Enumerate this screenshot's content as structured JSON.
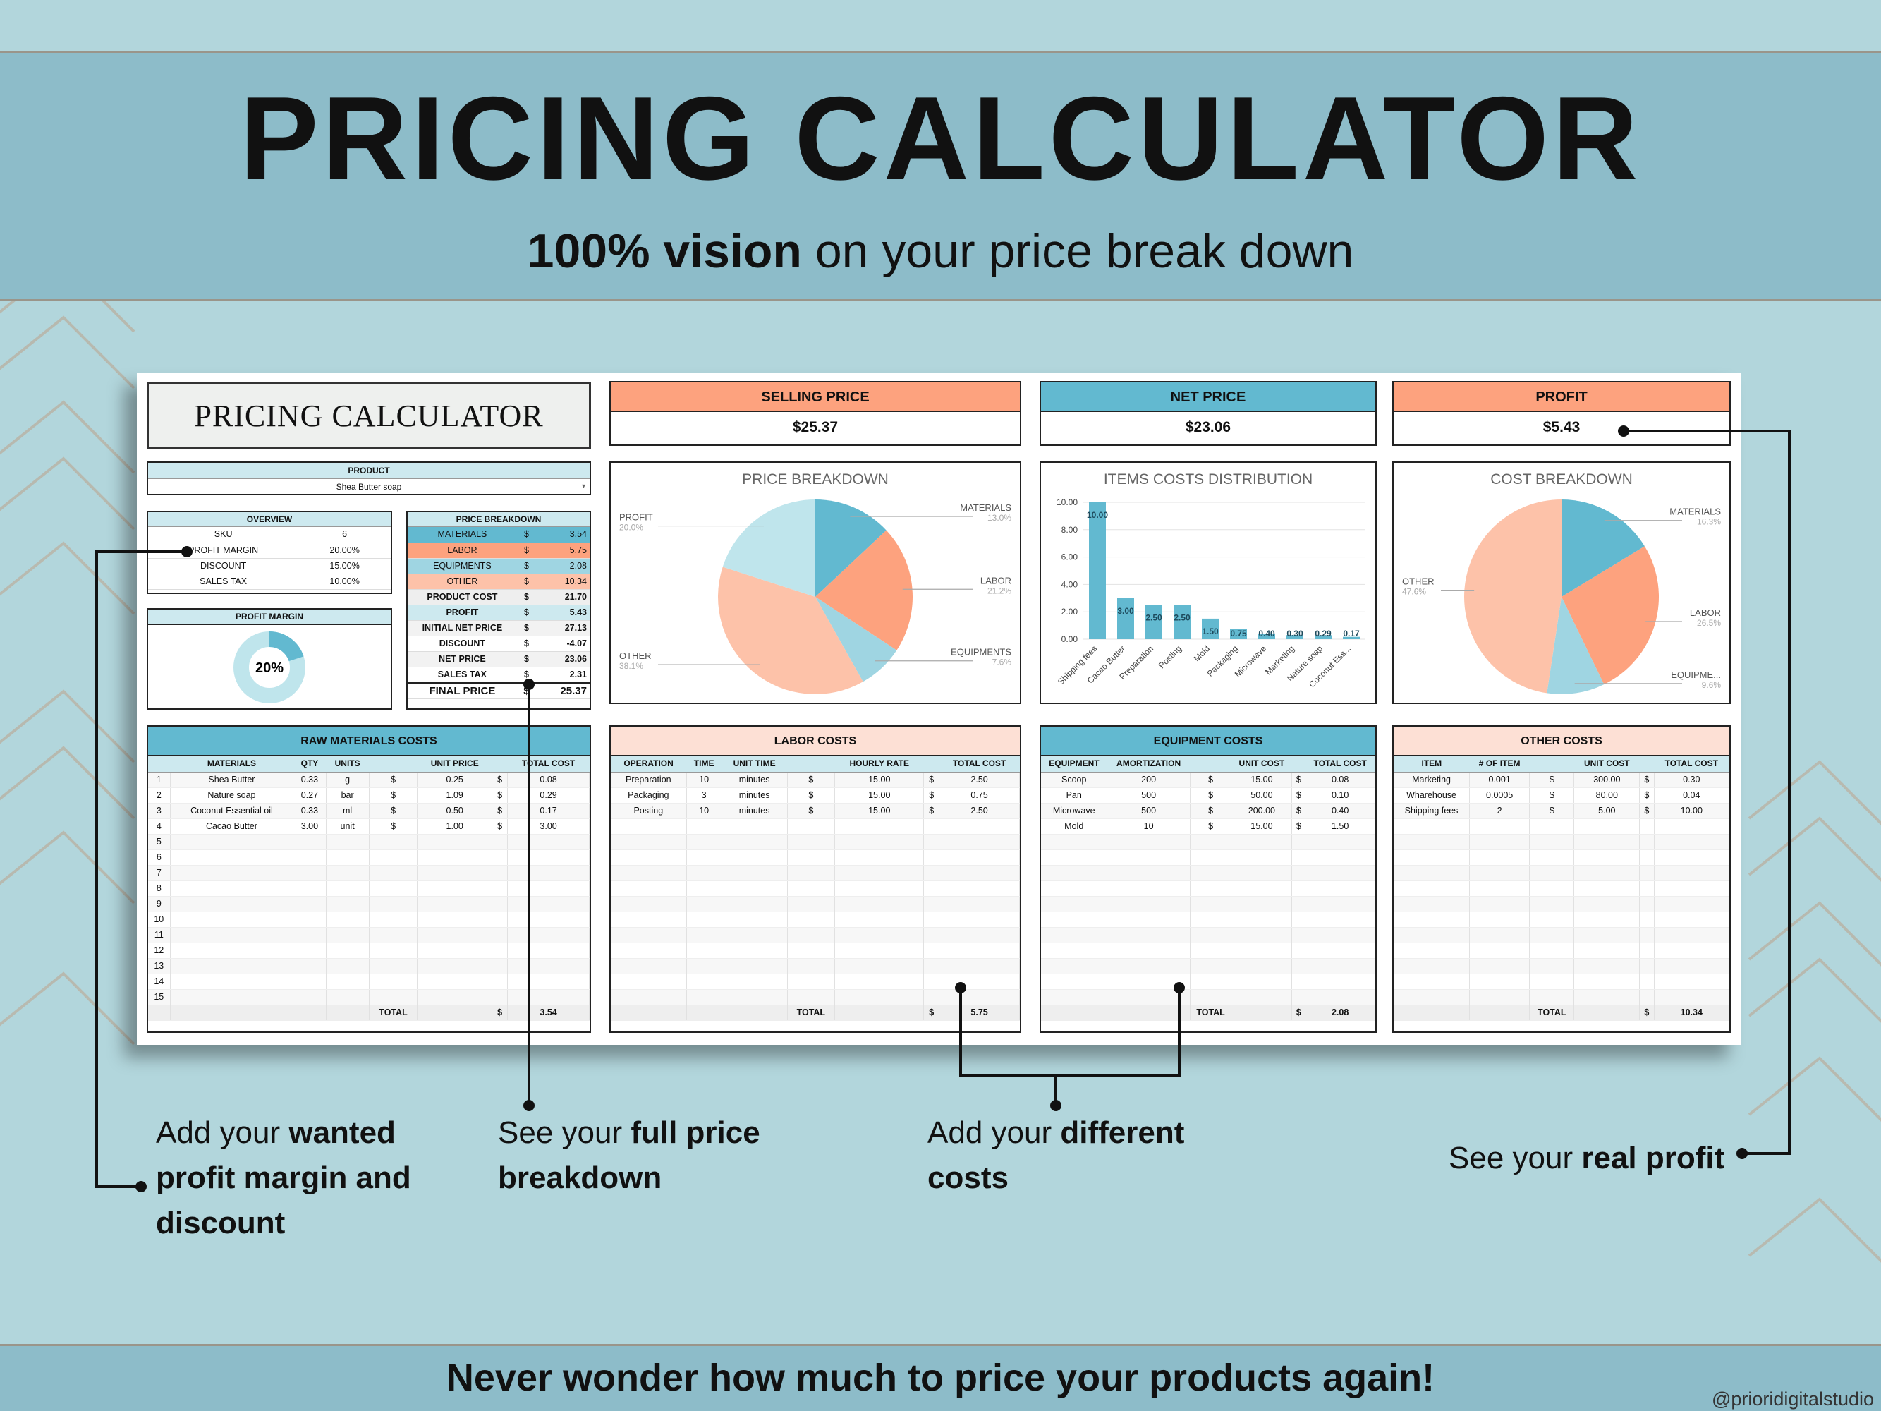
{
  "header": {
    "title": "PRICING CALCULATOR",
    "subtitle_bold": "100% vision",
    "subtitle_rest": " on your price break down"
  },
  "footer": {
    "tagline": "Never wonder how much to price your products again!",
    "credit": "@prioridigitalstudio"
  },
  "sheet": {
    "title": "PRICING CALCULATOR",
    "kpis": [
      {
        "label": "SELLING PRICE",
        "value": "$25.37",
        "color": "#fda27e"
      },
      {
        "label": "NET PRICE",
        "value": "$23.06",
        "color": "#62b9d0"
      },
      {
        "label": "PROFIT",
        "value": "$5.43",
        "color": "#fda27e"
      }
    ],
    "product": {
      "label": "PRODUCT",
      "value": "Shea Butter soap"
    },
    "overview": {
      "label": "OVERVIEW",
      "rows": [
        {
          "k": "SKU",
          "v": "6"
        },
        {
          "k": "PROFIT MARGIN",
          "v": "20.00%"
        },
        {
          "k": "DISCOUNT",
          "v": "15.00%"
        },
        {
          "k": "SALES TAX",
          "v": "10.00%"
        }
      ]
    },
    "profit_margin": {
      "label": "PROFIT MARGIN",
      "value": "20%",
      "fraction": 0.2
    },
    "price_breakdown": {
      "label": "PRICE BREAKDOWN",
      "rows": [
        {
          "k": "MATERIALS",
          "c": "$",
          "v": "3.54"
        },
        {
          "k": "LABOR",
          "c": "$",
          "v": "5.75"
        },
        {
          "k": "EQUIPMENTS",
          "c": "$",
          "v": "2.08"
        },
        {
          "k": "OTHER",
          "c": "$",
          "v": "10.34"
        },
        {
          "k": "PRODUCT COST",
          "c": "$",
          "v": "21.70"
        },
        {
          "k": "PROFIT",
          "c": "$",
          "v": "5.43"
        },
        {
          "k": "INITIAL NET PRICE",
          "c": "$",
          "v": "27.13"
        },
        {
          "k": "DISCOUNT",
          "c": "$",
          "v": "-4.07"
        },
        {
          "k": "NET PRICE",
          "c": "$",
          "v": "23.06"
        },
        {
          "k": "SALES TAX",
          "c": "$",
          "v": "2.31"
        },
        {
          "k": "FINAL PRICE",
          "c": "$",
          "v": "25.37"
        }
      ]
    },
    "raw": {
      "title": "RAW MATERIALS COSTS",
      "cols": [
        "",
        "MATERIALS",
        "QTY",
        "UNITS",
        "",
        "UNIT PRICE",
        "",
        "TOTAL COST"
      ],
      "rows": [
        [
          "1",
          "Shea Butter",
          "0.33",
          "g",
          "$",
          "0.25",
          "$",
          "0.08"
        ],
        [
          "2",
          "Nature soap",
          "0.27",
          "bar",
          "$",
          "1.09",
          "$",
          "0.29"
        ],
        [
          "3",
          "Coconut Essential oil",
          "0.33",
          "ml",
          "$",
          "0.50",
          "$",
          "0.17"
        ],
        [
          "4",
          "Cacao Butter",
          "3.00",
          "unit",
          "$",
          "1.00",
          "$",
          "3.00"
        ],
        [
          "5",
          "",
          "",
          "",
          "",
          "",
          "",
          ""
        ],
        [
          "6",
          "",
          "",
          "",
          "",
          "",
          "",
          ""
        ],
        [
          "7",
          "",
          "",
          "",
          "",
          "",
          "",
          ""
        ],
        [
          "8",
          "",
          "",
          "",
          "",
          "",
          "",
          ""
        ],
        [
          "9",
          "",
          "",
          "",
          "",
          "",
          "",
          ""
        ],
        [
          "10",
          "",
          "",
          "",
          "",
          "",
          "",
          ""
        ],
        [
          "11",
          "",
          "",
          "",
          "",
          "",
          "",
          ""
        ],
        [
          "12",
          "",
          "",
          "",
          "",
          "",
          "",
          ""
        ],
        [
          "13",
          "",
          "",
          "",
          "",
          "",
          "",
          ""
        ],
        [
          "14",
          "",
          "",
          "",
          "",
          "",
          "",
          ""
        ],
        [
          "15",
          "",
          "",
          "",
          "",
          "",
          "",
          ""
        ]
      ],
      "total": [
        "",
        "",
        "",
        "",
        "TOTAL",
        "",
        "$",
        "3.54"
      ]
    },
    "labor": {
      "title": "LABOR COSTS",
      "cols": [
        "OPERATION",
        "TIME",
        "UNIT TIME",
        "",
        "HOURLY RATE",
        "",
        "TOTAL COST"
      ],
      "rows": [
        [
          "Preparation",
          "10",
          "minutes",
          "$",
          "15.00",
          "$",
          "2.50"
        ],
        [
          "Packaging",
          "3",
          "minutes",
          "$",
          "15.00",
          "$",
          "0.75"
        ],
        [
          "Posting",
          "10",
          "minutes",
          "$",
          "15.00",
          "$",
          "2.50"
        ],
        [
          "",
          "",
          "",
          "",
          "",
          "",
          ""
        ],
        [
          "",
          "",
          "",
          "",
          "",
          "",
          ""
        ],
        [
          "",
          "",
          "",
          "",
          "",
          "",
          ""
        ],
        [
          "",
          "",
          "",
          "",
          "",
          "",
          ""
        ],
        [
          "",
          "",
          "",
          "",
          "",
          "",
          ""
        ],
        [
          "",
          "",
          "",
          "",
          "",
          "",
          ""
        ],
        [
          "",
          "",
          "",
          "",
          "",
          "",
          ""
        ],
        [
          "",
          "",
          "",
          "",
          "",
          "",
          ""
        ],
        [
          "",
          "",
          "",
          "",
          "",
          "",
          ""
        ],
        [
          "",
          "",
          "",
          "",
          "",
          "",
          ""
        ],
        [
          "",
          "",
          "",
          "",
          "",
          "",
          ""
        ],
        [
          "",
          "",
          "",
          "",
          "",
          "",
          ""
        ]
      ],
      "total": [
        "",
        "",
        "",
        "TOTAL",
        "",
        "$",
        "5.75"
      ]
    },
    "equipment": {
      "title": "EQUIPMENT COSTS",
      "cols": [
        "EQUIPMENT",
        "AMORTIZATION",
        "",
        "UNIT COST",
        "",
        "TOTAL COST"
      ],
      "rows": [
        [
          "Scoop",
          "200",
          "$",
          "15.00",
          "$",
          "0.08"
        ],
        [
          "Pan",
          "500",
          "$",
          "50.00",
          "$",
          "0.10"
        ],
        [
          "Microwave",
          "500",
          "$",
          "200.00",
          "$",
          "0.40"
        ],
        [
          "Mold",
          "10",
          "$",
          "15.00",
          "$",
          "1.50"
        ],
        [
          "",
          "",
          "",
          "",
          "",
          ""
        ],
        [
          "",
          "",
          "",
          "",
          "",
          ""
        ],
        [
          "",
          "",
          "",
          "",
          "",
          ""
        ],
        [
          "",
          "",
          "",
          "",
          "",
          ""
        ],
        [
          "",
          "",
          "",
          "",
          "",
          ""
        ],
        [
          "",
          "",
          "",
          "",
          "",
          ""
        ],
        [
          "",
          "",
          "",
          "",
          "",
          ""
        ],
        [
          "",
          "",
          "",
          "",
          "",
          ""
        ],
        [
          "",
          "",
          "",
          "",
          "",
          ""
        ],
        [
          "",
          "",
          "",
          "",
          "",
          ""
        ],
        [
          "",
          "",
          "",
          "",
          "",
          ""
        ]
      ],
      "total": [
        "",
        "",
        "TOTAL",
        "",
        "$",
        "2.08"
      ]
    },
    "other": {
      "title": "OTHER COSTS",
      "cols": [
        "ITEM",
        "# OF ITEM",
        "",
        "UNIT COST",
        "",
        "TOTAL COST"
      ],
      "rows": [
        [
          "Marketing",
          "0.001",
          "$",
          "300.00",
          "$",
          "0.30"
        ],
        [
          "Wharehouse",
          "0.0005",
          "$",
          "80.00",
          "$",
          "0.04"
        ],
        [
          "Shipping fees",
          "2",
          "$",
          "5.00",
          "$",
          "10.00"
        ],
        [
          "",
          "",
          "",
          "",
          "",
          ""
        ],
        [
          "",
          "",
          "",
          "",
          "",
          ""
        ],
        [
          "",
          "",
          "",
          "",
          "",
          ""
        ],
        [
          "",
          "",
          "",
          "",
          "",
          ""
        ],
        [
          "",
          "",
          "",
          "",
          "",
          ""
        ],
        [
          "",
          "",
          "",
          "",
          "",
          ""
        ],
        [
          "",
          "",
          "",
          "",
          "",
          ""
        ],
        [
          "",
          "",
          "",
          "",
          "",
          ""
        ],
        [
          "",
          "",
          "",
          "",
          "",
          ""
        ],
        [
          "",
          "",
          "",
          "",
          "",
          ""
        ],
        [
          "",
          "",
          "",
          "",
          "",
          ""
        ],
        [
          "",
          "",
          "",
          "",
          "",
          ""
        ]
      ],
      "total": [
        "",
        "",
        "TOTAL",
        "",
        "$",
        "10.34"
      ]
    }
  },
  "chart_data": [
    {
      "type": "pie",
      "title": "PRICE BREAKDOWN",
      "slices": [
        {
          "label": "MATERIALS",
          "pct": "13.0%",
          "value": 13.0,
          "color": "#62b9d0"
        },
        {
          "label": "LABOR",
          "pct": "21.2%",
          "value": 21.2,
          "color": "#fda27e"
        },
        {
          "label": "EQUIPMENTS",
          "pct": "7.6%",
          "value": 7.6,
          "color": "#9fd5e2"
        },
        {
          "label": "OTHER",
          "pct": "38.1%",
          "value": 38.1,
          "color": "#fdc2a9"
        },
        {
          "label": "PROFIT",
          "pct": "20.0%",
          "value": 20.0,
          "color": "#bfe5ec"
        }
      ]
    },
    {
      "type": "bar",
      "title": "ITEMS COSTS DISTRIBUTION",
      "categories": [
        "Shipping fees",
        "Cacao Butter",
        "Preparation",
        "Posting",
        "Mold",
        "Packaging",
        "Microwave",
        "Marketing",
        "Nature soap",
        "Coconut Ess..."
      ],
      "values": [
        10.0,
        3.0,
        2.5,
        2.5,
        1.5,
        0.75,
        0.4,
        0.3,
        0.29,
        0.17
      ],
      "labels": [
        "10.00",
        "3.00",
        "2.50",
        "2.50",
        "1.50",
        "0.75",
        "0.40",
        "0.30",
        "0.29",
        "0.17"
      ],
      "yticks": [
        "0.00",
        "2.00",
        "4.00",
        "6.00",
        "8.00",
        "10.00"
      ],
      "ylim": [
        0,
        10
      ],
      "color": "#62b9d0"
    },
    {
      "type": "pie",
      "title": "COST BREAKDOWN",
      "slices": [
        {
          "label": "MATERIALS",
          "pct": "16.3%",
          "value": 16.3,
          "color": "#62b9d0"
        },
        {
          "label": "LABOR",
          "pct": "26.5%",
          "value": 26.5,
          "color": "#fda27e"
        },
        {
          "label": "EQUIPME...",
          "pct": "9.6%",
          "value": 9.6,
          "color": "#9fd5e2"
        },
        {
          "label": "OTHER",
          "pct": "47.6%",
          "value": 47.6,
          "color": "#fdc2a9"
        }
      ]
    }
  ],
  "annotations": {
    "margin": {
      "pre": "Add your ",
      "bold1": "wanted",
      "bold2": "profit margin and",
      "bold3": "discount"
    },
    "breakdown": {
      "pre": "See your ",
      "bold1": "full price",
      "bold2": "breakdown"
    },
    "costs": {
      "pre": "Add your ",
      "bold1": "different",
      "bold2": "costs"
    },
    "profit": {
      "pre": "See your ",
      "bold1": "real profit"
    }
  }
}
